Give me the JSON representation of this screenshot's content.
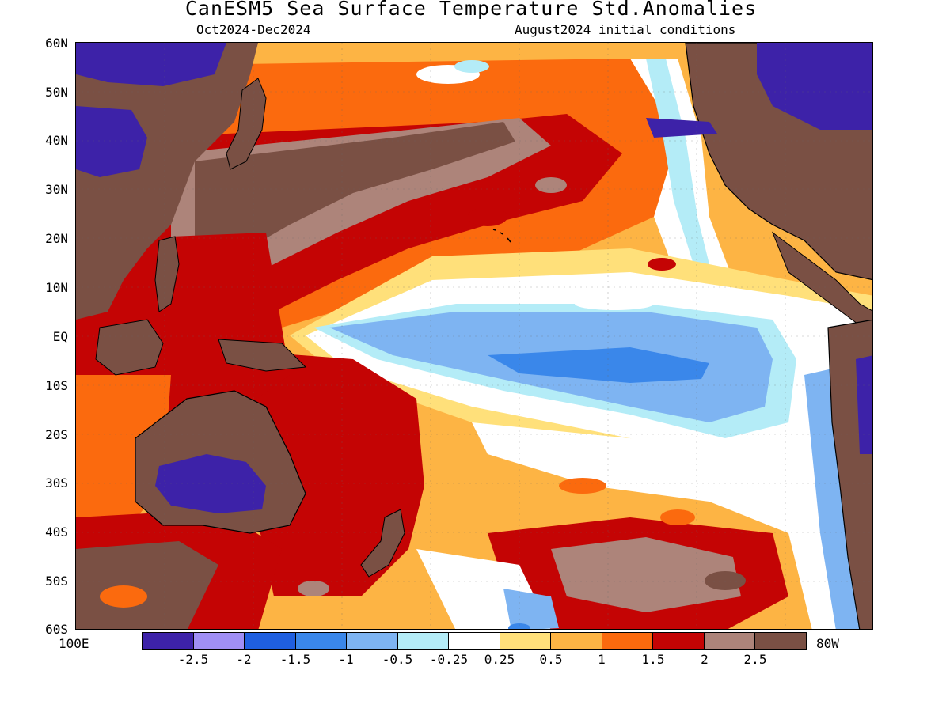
{
  "title": "CanESM5 Sea Surface Temperature Std.Anomalies",
  "period": "Oct2024-Dec2024",
  "initial_conditions": "August2024 initial conditions",
  "lat_labels": [
    "60N",
    "50N",
    "40N",
    "30N",
    "20N",
    "10N",
    "EQ",
    "10S",
    "20S",
    "30S",
    "40S",
    "50S",
    "60S"
  ],
  "lon_labels": {
    "west": "100E",
    "east": "80W"
  },
  "colorbar": {
    "colors": [
      "#3d22a8",
      "#a08ff5",
      "#1f5fe0",
      "#3a87ea",
      "#7eb4f2",
      "#b4ecf7",
      "#ffffff",
      "#ffe07a",
      "#fdb444",
      "#fb6a0e",
      "#c40404",
      "#ad847a",
      "#7a5044"
    ],
    "labels": [
      "-2.5",
      "-2",
      "-1.5",
      "-1",
      "-0.5",
      "-0.25",
      "0.25",
      "0.5",
      "1",
      "1.5",
      "2",
      "2.5"
    ]
  },
  "colors": {
    "land": "#7a5044",
    "land_cold": "#3d22a8",
    "coastline": "#000000"
  }
}
